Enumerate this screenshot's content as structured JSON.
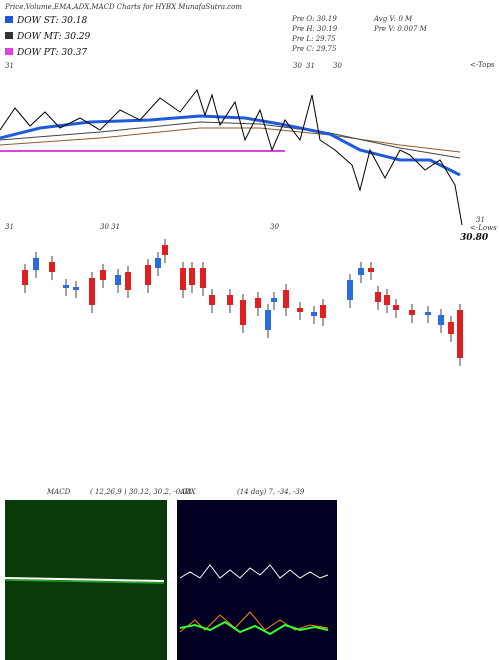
{
  "header": {
    "title": "Price,Volume,EMA,ADX,MACD Charts for HYBX MunafaSutra.com"
  },
  "dow": [
    "DOW ST: 30.18",
    "DOW MT: 30.29",
    "DOW PT: 30.37"
  ],
  "pre": [
    "Pre   O: 30.19",
    "Pre   H: 30.19",
    "Pre   L: 29.75",
    "Pre   C: 29.75"
  ],
  "volume": [
    "Avg V: 0  M",
    "Pre   V: 0.007 M"
  ],
  "price_label": "30.80",
  "axis_marks": {
    "tops": "<-Tops",
    "lows": "<-Lows",
    "top_dates": [
      "31",
      "30",
      "31",
      "30"
    ],
    "low_dates": [
      "31",
      "30 31",
      "30",
      "31"
    ]
  },
  "macd": {
    "label": "MACD",
    "params": "( 12,26,9 ) 30.12, 30.2, -0.08"
  },
  "adx": {
    "label": "ADX",
    "params": "(14  day) 7, -34, -39"
  }
}
